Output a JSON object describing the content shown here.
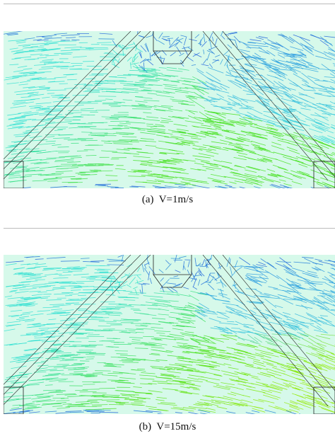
{
  "panels": [
    {
      "caption": "(a)  V=1m/s"
    },
    {
      "caption": "(b)  V=15m/s"
    }
  ]
}
